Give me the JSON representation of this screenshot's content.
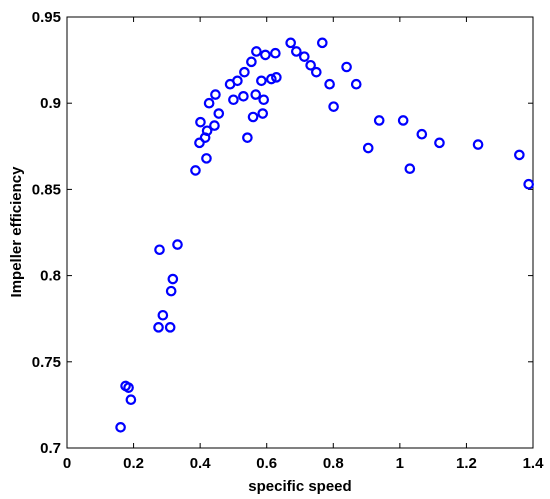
{
  "chart_data": {
    "type": "scatter",
    "title": "",
    "xlabel": "specific speed",
    "ylabel": "Impeller efficiency",
    "xlim": [
      0,
      1.4
    ],
    "ylim": [
      0.7,
      0.95
    ],
    "xticks": [
      0,
      0.2,
      0.4,
      0.6,
      0.8,
      1,
      1.2,
      1.4
    ],
    "xtick_labels": [
      "0",
      "0.2",
      "0.4",
      "0.6",
      "0.8",
      "1",
      "1.2",
      "1.4"
    ],
    "yticks": [
      0.7,
      0.75,
      0.8,
      0.85,
      0.9,
      0.95
    ],
    "ytick_labels": [
      "0.7",
      "0.75",
      "0.8",
      "0.85",
      "0.9",
      "0.95"
    ],
    "grid": false,
    "marker": "open-circle",
    "color": "#0000ff",
    "series": [
      {
        "points": [
          [
            0.161,
            0.712
          ],
          [
            0.176,
            0.736
          ],
          [
            0.185,
            0.735
          ],
          [
            0.192,
            0.728
          ],
          [
            0.275,
            0.77
          ],
          [
            0.278,
            0.815
          ],
          [
            0.288,
            0.777
          ],
          [
            0.31,
            0.77
          ],
          [
            0.313,
            0.791
          ],
          [
            0.318,
            0.798
          ],
          [
            0.332,
            0.818
          ],
          [
            0.386,
            0.861
          ],
          [
            0.398,
            0.877
          ],
          [
            0.401,
            0.889
          ],
          [
            0.415,
            0.88
          ],
          [
            0.419,
            0.868
          ],
          [
            0.421,
            0.884
          ],
          [
            0.427,
            0.9
          ],
          [
            0.443,
            0.887
          ],
          [
            0.446,
            0.905
          ],
          [
            0.456,
            0.894
          ],
          [
            0.49,
            0.911
          ],
          [
            0.5,
            0.902
          ],
          [
            0.512,
            0.913
          ],
          [
            0.53,
            0.904
          ],
          [
            0.533,
            0.918
          ],
          [
            0.542,
            0.88
          ],
          [
            0.554,
            0.924
          ],
          [
            0.559,
            0.892
          ],
          [
            0.567,
            0.905
          ],
          [
            0.569,
            0.93
          ],
          [
            0.584,
            0.913
          ],
          [
            0.588,
            0.894
          ],
          [
            0.591,
            0.902
          ],
          [
            0.596,
            0.928
          ],
          [
            0.614,
            0.914
          ],
          [
            0.626,
            0.929
          ],
          [
            0.629,
            0.915
          ],
          [
            0.672,
            0.935
          ],
          [
            0.689,
            0.93
          ],
          [
            0.713,
            0.927
          ],
          [
            0.732,
            0.922
          ],
          [
            0.749,
            0.918
          ],
          [
            0.767,
            0.935
          ],
          [
            0.789,
            0.911
          ],
          [
            0.801,
            0.898
          ],
          [
            0.84,
            0.921
          ],
          [
            0.869,
            0.911
          ],
          [
            0.905,
            0.874
          ],
          [
            0.938,
            0.89
          ],
          [
            1.01,
            0.89
          ],
          [
            1.03,
            0.862
          ],
          [
            1.066,
            0.882
          ],
          [
            1.119,
            0.877
          ],
          [
            1.235,
            0.876
          ],
          [
            1.359,
            0.87
          ],
          [
            1.387,
            0.853
          ]
        ]
      }
    ]
  }
}
